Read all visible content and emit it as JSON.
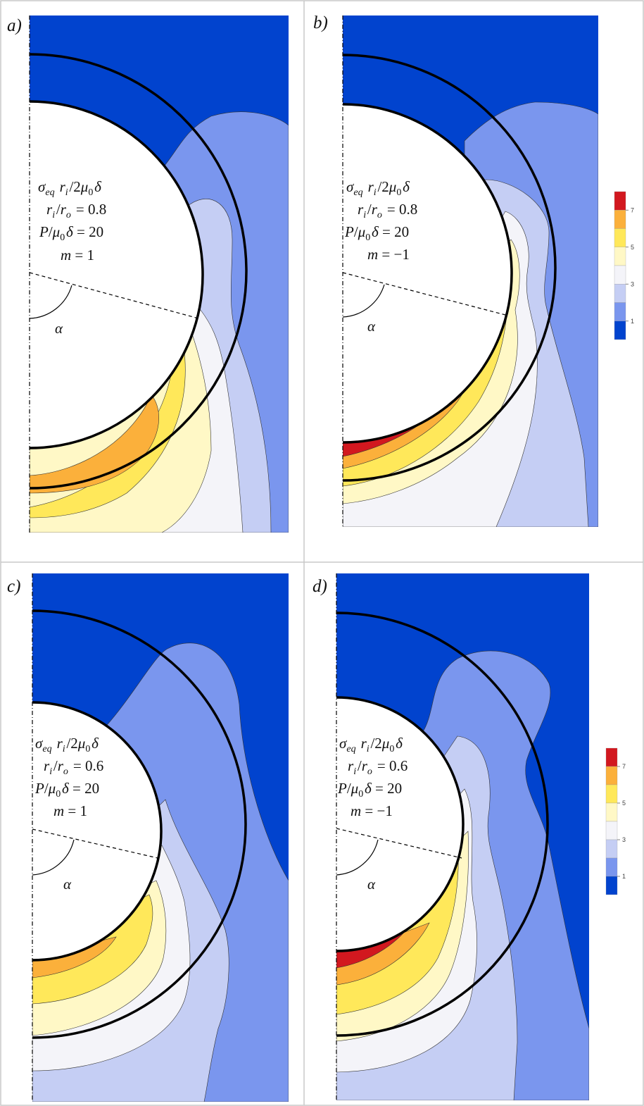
{
  "colors": {
    "levels": [
      "#0143CE",
      "#7A96EE",
      "#C5CEF4",
      "#F4F4F9",
      "#FFF8C6",
      "#FFE85A",
      "#FBB03B",
      "#D2181F"
    ],
    "outline": "#000000",
    "cell_border": "#c8c8c8"
  },
  "colorbar": {
    "tick_labels": [
      "1",
      "3",
      "5",
      "7"
    ]
  },
  "panels": [
    {
      "label": "a)",
      "params": [
        "σ_eq r_i/2μ_0δ",
        "r_i/r_o = 0.8",
        "P/μ_0δ = 20",
        "m = 1"
      ],
      "angle_label": "α",
      "ratio": 0.8,
      "m": 1
    },
    {
      "label": "b)",
      "params": [
        "σ_eq r_i/2μ_0δ",
        "r_i/r_o = 0.8",
        "P/μ_0δ = 20",
        "m = −1"
      ],
      "angle_label": "α",
      "ratio": 0.8,
      "m": -1
    },
    {
      "label": "c)",
      "params": [
        "σ_eq r_i/2μ_0δ",
        "r_i/r_o = 0.6",
        "P/μ_0δ = 20",
        "m = 1"
      ],
      "angle_label": "α",
      "ratio": 0.6,
      "m": 1
    },
    {
      "label": "d)",
      "params": [
        "σ_eq r_i/2μ_0δ",
        "r_i/r_o = 0.6",
        "P/μ_0δ = 20",
        "m = −1"
      ],
      "angle_label": "α",
      "ratio": 0.6,
      "m": -1
    }
  ]
}
